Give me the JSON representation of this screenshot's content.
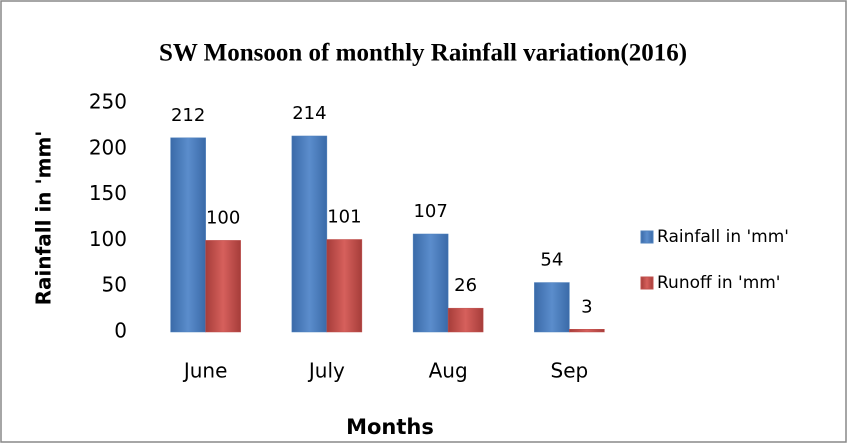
{
  "chart_data": {
    "type": "bar",
    "title": "SW Monsoon of monthly Rainfall variation(2016)",
    "x_label": "Months",
    "y_label": "Rainfall in 'mm'",
    "categories": [
      "June",
      "July",
      "Aug",
      "Sep"
    ],
    "series": [
      {
        "name": "Rainfall in 'mm'",
        "color": "#4f81bd",
        "values": [
          212,
          214,
          107,
          54
        ]
      },
      {
        "name": "Runoff in 'mm'",
        "color": "#c0504d",
        "values": [
          100,
          101,
          26,
          3
        ]
      }
    ],
    "ylim": [
      0,
      250
    ],
    "yticks": [
      0,
      50,
      100,
      150,
      200,
      250
    ],
    "grid": false,
    "legend": "right"
  }
}
